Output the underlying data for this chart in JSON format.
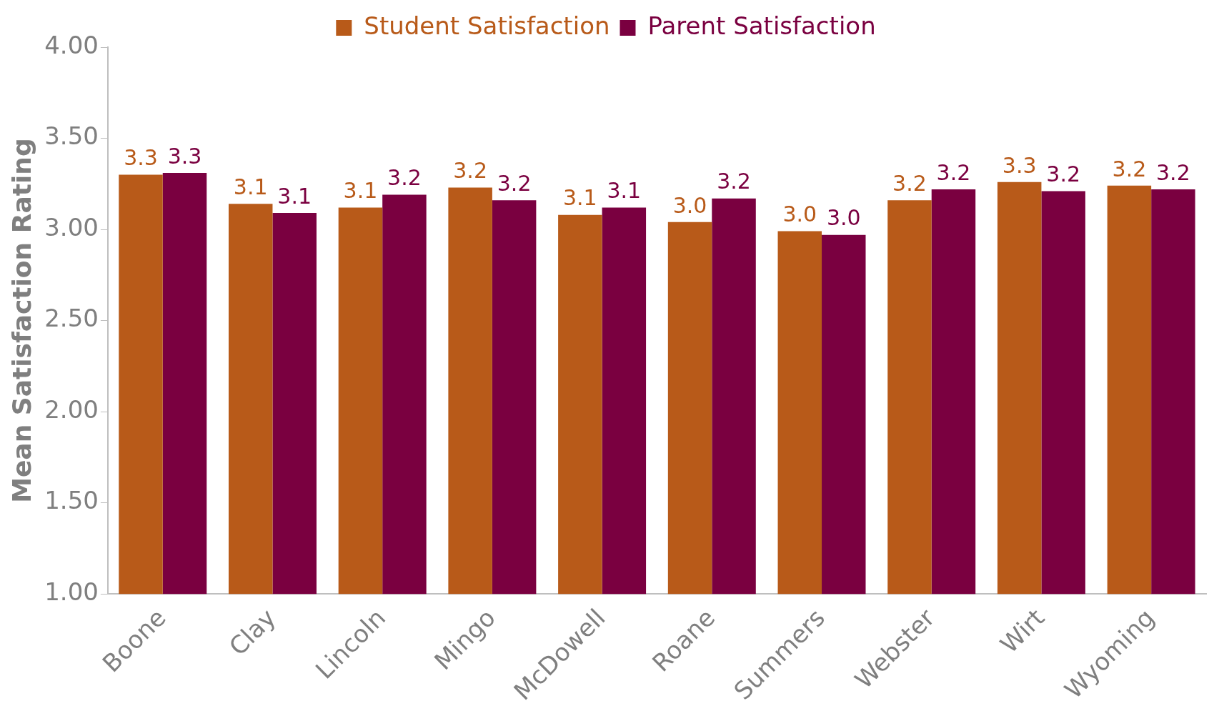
{
  "chart_data": {
    "type": "bar",
    "ylabel": "Mean Satisfaction Rating",
    "categories": [
      "Boone",
      "Clay",
      "Lincoln",
      "Mingo",
      "McDowell",
      "Roane",
      "Summers",
      "Webster",
      "Wirt",
      "Wyoming"
    ],
    "series": [
      {
        "name": "Student Satisfaction",
        "color": "#b85a19",
        "values": [
          3.3,
          3.14,
          3.12,
          3.23,
          3.08,
          3.04,
          2.99,
          3.16,
          3.26,
          3.24
        ],
        "value_labels": [
          "3.3",
          "3.1",
          "3.1",
          "3.2",
          "3.1",
          "3.0",
          "3.0",
          "3.2",
          "3.3",
          "3.2"
        ]
      },
      {
        "name": "Parent Satisfaction",
        "color": "#7a0040",
        "values": [
          3.31,
          3.09,
          3.19,
          3.16,
          3.12,
          3.17,
          2.97,
          3.22,
          3.21,
          3.22
        ],
        "value_labels": [
          "3.3",
          "3.1",
          "3.2",
          "3.2",
          "3.1",
          "3.2",
          "3.0",
          "3.2",
          "3.2",
          "3.2"
        ]
      }
    ],
    "ylim": [
      1,
      4
    ],
    "yticks": [
      {
        "value": 1,
        "label": "1.00"
      },
      {
        "value": 1.5,
        "label": "1.50"
      },
      {
        "value": 2,
        "label": "2.00"
      },
      {
        "value": 2.5,
        "label": "2.50"
      },
      {
        "value": 3,
        "label": "3.00"
      },
      {
        "value": 3.5,
        "label": "3.50"
      },
      {
        "value": 4,
        "label": "4.00"
      }
    ],
    "grid": false,
    "legend": "top"
  }
}
